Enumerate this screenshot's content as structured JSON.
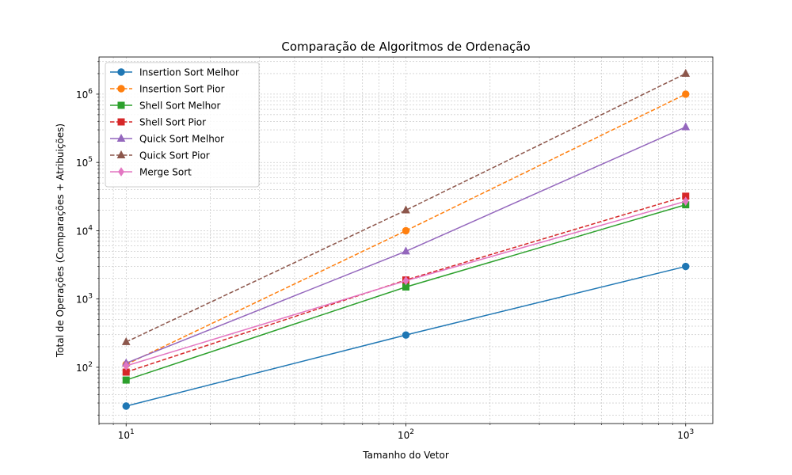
{
  "chart_data": {
    "type": "line",
    "title": "Comparação de Algoritmos de Ordenação",
    "xlabel": "Tamanho do Vetor",
    "ylabel": "Total de Operações (Comparações + Atribuições)",
    "x_scale": "log",
    "y_scale": "log",
    "xlim": [
      8,
      1250
    ],
    "ylim": [
      15,
      3500000
    ],
    "x_ticks": [
      {
        "value": 10,
        "base": "10",
        "exp": "1"
      },
      {
        "value": 100,
        "base": "10",
        "exp": "2"
      },
      {
        "value": 1000,
        "base": "10",
        "exp": "3"
      }
    ],
    "y_ticks": [
      {
        "value": 100,
        "base": "10",
        "exp": "2"
      },
      {
        "value": 1000,
        "base": "10",
        "exp": "3"
      },
      {
        "value": 10000,
        "base": "10",
        "exp": "4"
      },
      {
        "value": 100000,
        "base": "10",
        "exp": "5"
      },
      {
        "value": 1000000,
        "base": "10",
        "exp": "6"
      }
    ],
    "grid": true,
    "legend_position": "top-left",
    "x": [
      10,
      100,
      1000
    ],
    "series": [
      {
        "name": "Insertion Sort Melhor",
        "values": [
          27,
          297,
          2997
        ],
        "color": "#1f77b4",
        "dash": "solid",
        "marker": "circle"
      },
      {
        "name": "Insertion Sort Pior",
        "values": [
          110,
          10000,
          1000000
        ],
        "color": "#ff7f0e",
        "dash": "dashed",
        "marker": "circle"
      },
      {
        "name": "Shell Sort Melhor",
        "values": [
          65,
          1500,
          24000
        ],
        "color": "#2ca02c",
        "dash": "solid",
        "marker": "square"
      },
      {
        "name": "Shell Sort Pior",
        "values": [
          85,
          1900,
          32000
        ],
        "color": "#d62728",
        "dash": "dashed",
        "marker": "square"
      },
      {
        "name": "Quick Sort Melhor",
        "values": [
          115,
          5000,
          330000
        ],
        "color": "#9467bd",
        "dash": "solid",
        "marker": "triangle"
      },
      {
        "name": "Quick Sort Pior",
        "values": [
          235,
          20000,
          2000000
        ],
        "color": "#8c564b",
        "dash": "dashed",
        "marker": "triangle"
      },
      {
        "name": "Merge Sort",
        "values": [
          105,
          1850,
          27000
        ],
        "color": "#e377c2",
        "dash": "solid",
        "marker": "diamond"
      }
    ]
  }
}
